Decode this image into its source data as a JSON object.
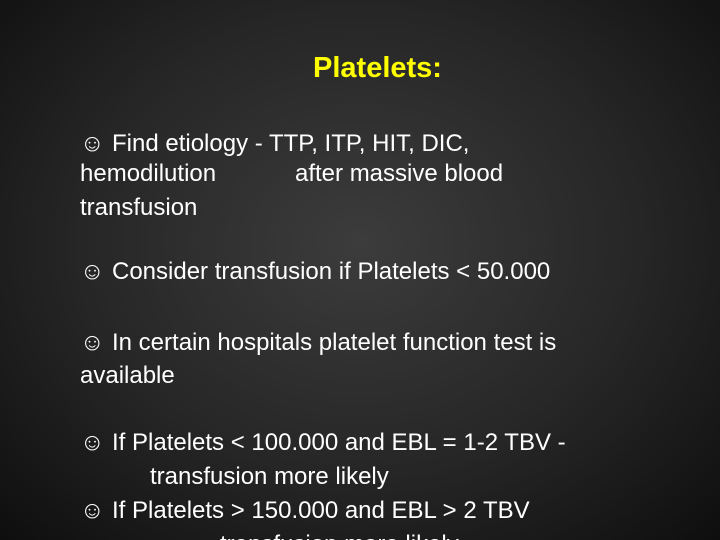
{
  "slide": {
    "title": "Platelets:",
    "bullets": [
      {
        "lines": [
          "Find etiology - TTP, ITP, HIT, DIC,",
          "hemodilution",
          "after massive blood",
          "transfusion"
        ]
      },
      {
        "lines": [
          "Consider transfusion if Platelets < 50.000"
        ]
      },
      {
        "lines": [
          "In certain hospitals platelet function test is",
          "available"
        ]
      },
      {
        "lines": [
          "If Platelets < 100.000 and EBL = 1-2 TBV -",
          "transfusion more likely"
        ]
      },
      {
        "lines": [
          "If Platelets > 150.000 and EBL > 2 TBV",
          "transfusion more likely"
        ]
      }
    ]
  }
}
